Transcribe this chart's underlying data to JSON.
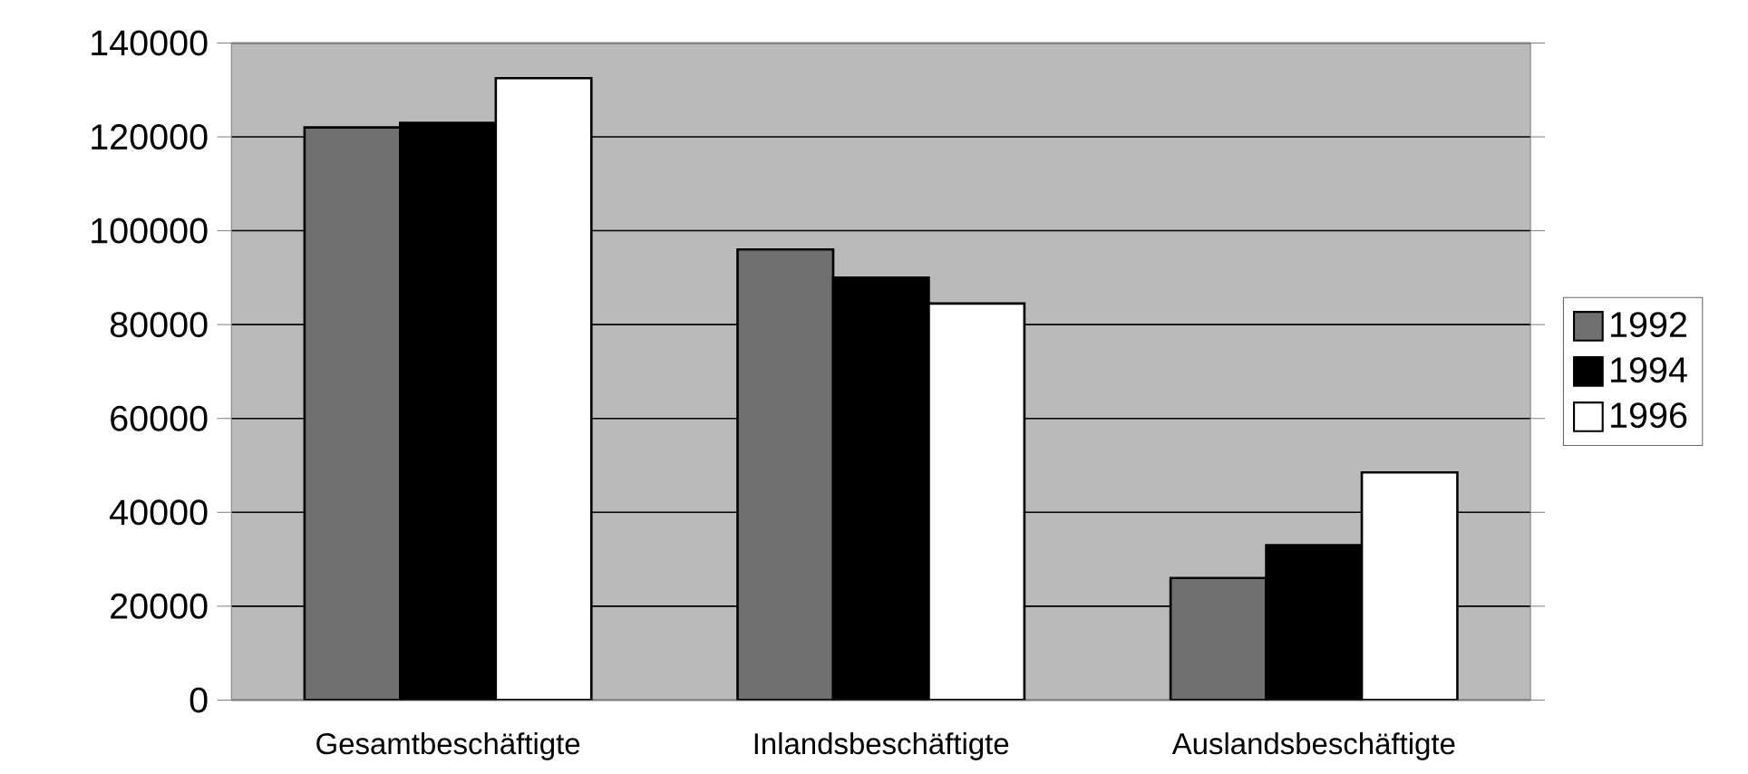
{
  "chart_data": {
    "type": "bar",
    "categories": [
      "Gesamtbeschäftigte",
      "Inlandsbeschäftigte",
      "Auslandsbeschäftigte"
    ],
    "series": [
      {
        "name": "1992",
        "color": "#707070",
        "values": [
          122000,
          96000,
          26000
        ]
      },
      {
        "name": "1994",
        "color": "#000000",
        "values": [
          123000,
          90000,
          33000
        ]
      },
      {
        "name": "1996",
        "color": "#ffffff",
        "values": [
          132500,
          84500,
          48500
        ]
      }
    ],
    "ylim": [
      0,
      140000
    ],
    "yticks": [
      0,
      20000,
      40000,
      60000,
      80000,
      100000,
      120000,
      140000
    ],
    "grid": "y",
    "legend": "right"
  }
}
